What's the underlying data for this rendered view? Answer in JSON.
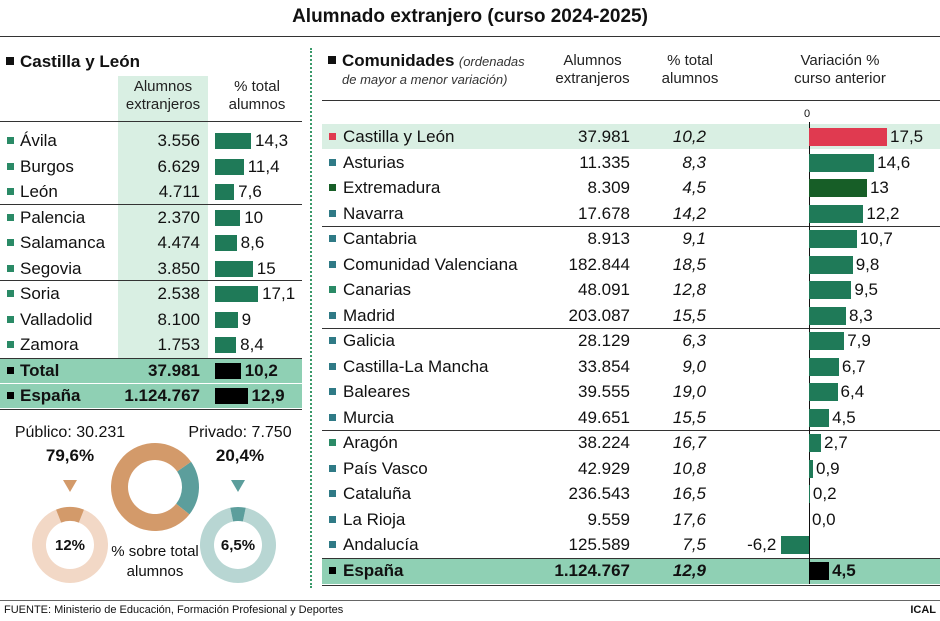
{
  "title": "Alumnado extranjero (curso 2024-2025)",
  "colors": {
    "bar": "#1f7a58",
    "extremadura_bar": "#175e27",
    "highlight_bar": "#e03a50",
    "total_bar": "#000000",
    "col_shade": "#d9efe3",
    "total_band": "#8fd0b4",
    "marker_teal": "#2f7a86",
    "marker_green": "#2a8a66",
    "publico": "#d39a6a",
    "publico_light": "#f2d8c6",
    "privado": "#5c9e9c",
    "privado_light": "#b8d6d3"
  },
  "left": {
    "heading": "Castilla y León",
    "col1": [
      "Alumnos",
      "extranjeros"
    ],
    "col2": [
      "% total",
      "alumnos"
    ],
    "rows": [
      {
        "name": "Ávila",
        "students": "3.556",
        "pct": 14.3,
        "pct_label": "14,3"
      },
      {
        "name": "Burgos",
        "students": "6.629",
        "pct": 11.4,
        "pct_label": "11,4"
      },
      {
        "name": "León",
        "students": "4.711",
        "pct": 7.6,
        "pct_label": "7,6"
      },
      {
        "name": "Palencia",
        "students": "2.370",
        "pct": 10,
        "pct_label": "10"
      },
      {
        "name": "Salamanca",
        "students": "4.474",
        "pct": 8.6,
        "pct_label": "8,6"
      },
      {
        "name": "Segovia",
        "students": "3.850",
        "pct": 15,
        "pct_label": "15"
      },
      {
        "name": "Soria",
        "students": "2.538",
        "pct": 17.1,
        "pct_label": "17,1"
      },
      {
        "name": "Valladolid",
        "students": "8.100",
        "pct": 9,
        "pct_label": "9"
      },
      {
        "name": "Zamora",
        "students": "1.753",
        "pct": 8.4,
        "pct_label": "8,4"
      }
    ],
    "totals": [
      {
        "name": "Total",
        "students": "37.981",
        "pct": 10.2,
        "pct_label": "10,2"
      },
      {
        "name": "España",
        "students": "1.124.767",
        "pct": 12.9,
        "pct_label": "12,9"
      }
    ]
  },
  "donuts": {
    "publico": {
      "label": "Público: 30.231",
      "share": 79.6,
      "share_label": "79,6%",
      "pct_total": 12,
      "pct_total_label": "12%"
    },
    "privado": {
      "label": "Privado: 7.750",
      "share": 20.4,
      "share_label": "20,4%",
      "pct_total": 6.5,
      "pct_total_label": "6,5%"
    },
    "caption": [
      "% sobre total",
      "alumnos"
    ]
  },
  "right": {
    "heading": "Comunidades",
    "subheading": [
      "(ordenadas",
      "de mayor a menor variación)"
    ],
    "col1": [
      "Alumnos",
      "extranjeros"
    ],
    "col2": [
      "% total",
      "alumnos"
    ],
    "col3": [
      "Variación %",
      "curso anterior"
    ],
    "zero_label": "0",
    "rows": [
      {
        "name": "Castilla y León",
        "students": "37.981",
        "pct": "10,2",
        "var": 17.5,
        "var_label": "17,5",
        "marker": "#e03a50",
        "bar": "#e03a50"
      },
      {
        "name": "Asturias",
        "students": "11.335",
        "pct": "8,3",
        "var": 14.6,
        "var_label": "14,6",
        "marker": "#2f7a86"
      },
      {
        "name": "Extremadura",
        "students": "8.309",
        "pct": "4,5",
        "var": 13,
        "var_label": "13",
        "marker": "#175e27",
        "bar": "#175e27"
      },
      {
        "name": "Navarra",
        "students": "17.678",
        "pct": "14,2",
        "var": 12.2,
        "var_label": "12,2",
        "marker": "#2f7a86"
      },
      {
        "name": "Cantabria",
        "students": "8.913",
        "pct": "9,1",
        "var": 10.7,
        "var_label": "10,7",
        "marker": "#2f7a86"
      },
      {
        "name": "Comunidad Valenciana",
        "students": "182.844",
        "pct": "18,5",
        "var": 9.8,
        "var_label": "9,8",
        "marker": "#2f7a86"
      },
      {
        "name": "Canarias",
        "students": "48.091",
        "pct": "12,8",
        "var": 9.5,
        "var_label": "9,5",
        "marker": "#2a8a66"
      },
      {
        "name": "Madrid",
        "students": "203.087",
        "pct": "15,5",
        "var": 8.3,
        "var_label": "8,3",
        "marker": "#2f7a86"
      },
      {
        "name": "Galicia",
        "students": "28.129",
        "pct": "6,3",
        "var": 7.9,
        "var_label": "7,9",
        "marker": "#2f7a86"
      },
      {
        "name": "Castilla-La Mancha",
        "students": "33.854",
        "pct": "9,0",
        "var": 6.7,
        "var_label": "6,7",
        "marker": "#2f7a86"
      },
      {
        "name": "Baleares",
        "students": "39.555",
        "pct": "19,0",
        "var": 6.4,
        "var_label": "6,4",
        "marker": "#2f7a86"
      },
      {
        "name": "Murcia",
        "students": "49.651",
        "pct": "15,5",
        "var": 4.5,
        "var_label": "4,5",
        "marker": "#2f7a86"
      },
      {
        "name": "Aragón",
        "students": "38.224",
        "pct": "16,7",
        "var": 2.7,
        "var_label": "2,7",
        "marker": "#2a8a66"
      },
      {
        "name": "País Vasco",
        "students": "42.929",
        "pct": "10,8",
        "var": 0.9,
        "var_label": "0,9",
        "marker": "#2f7a86"
      },
      {
        "name": "Cataluña",
        "students": "236.543",
        "pct": "16,5",
        "var": 0.2,
        "var_label": "0,2",
        "marker": "#2f7a86"
      },
      {
        "name": "La Rioja",
        "students": "9.559",
        "pct": "17,6",
        "var": 0.0,
        "var_label": "0,0",
        "marker": "#2f7a86"
      },
      {
        "name": "Andalucía",
        "students": "125.589",
        "pct": "7,5",
        "var": -6.2,
        "var_label": "-6,2",
        "marker": "#2f7a86"
      }
    ],
    "total": {
      "name": "España",
      "students": "1.124.767",
      "pct": "12,9",
      "var": 4.5,
      "var_label": "4,5"
    }
  },
  "source": "FUENTE: Ministerio de Educación, Formación Profesional y Deportes",
  "credit": "ICAL"
}
